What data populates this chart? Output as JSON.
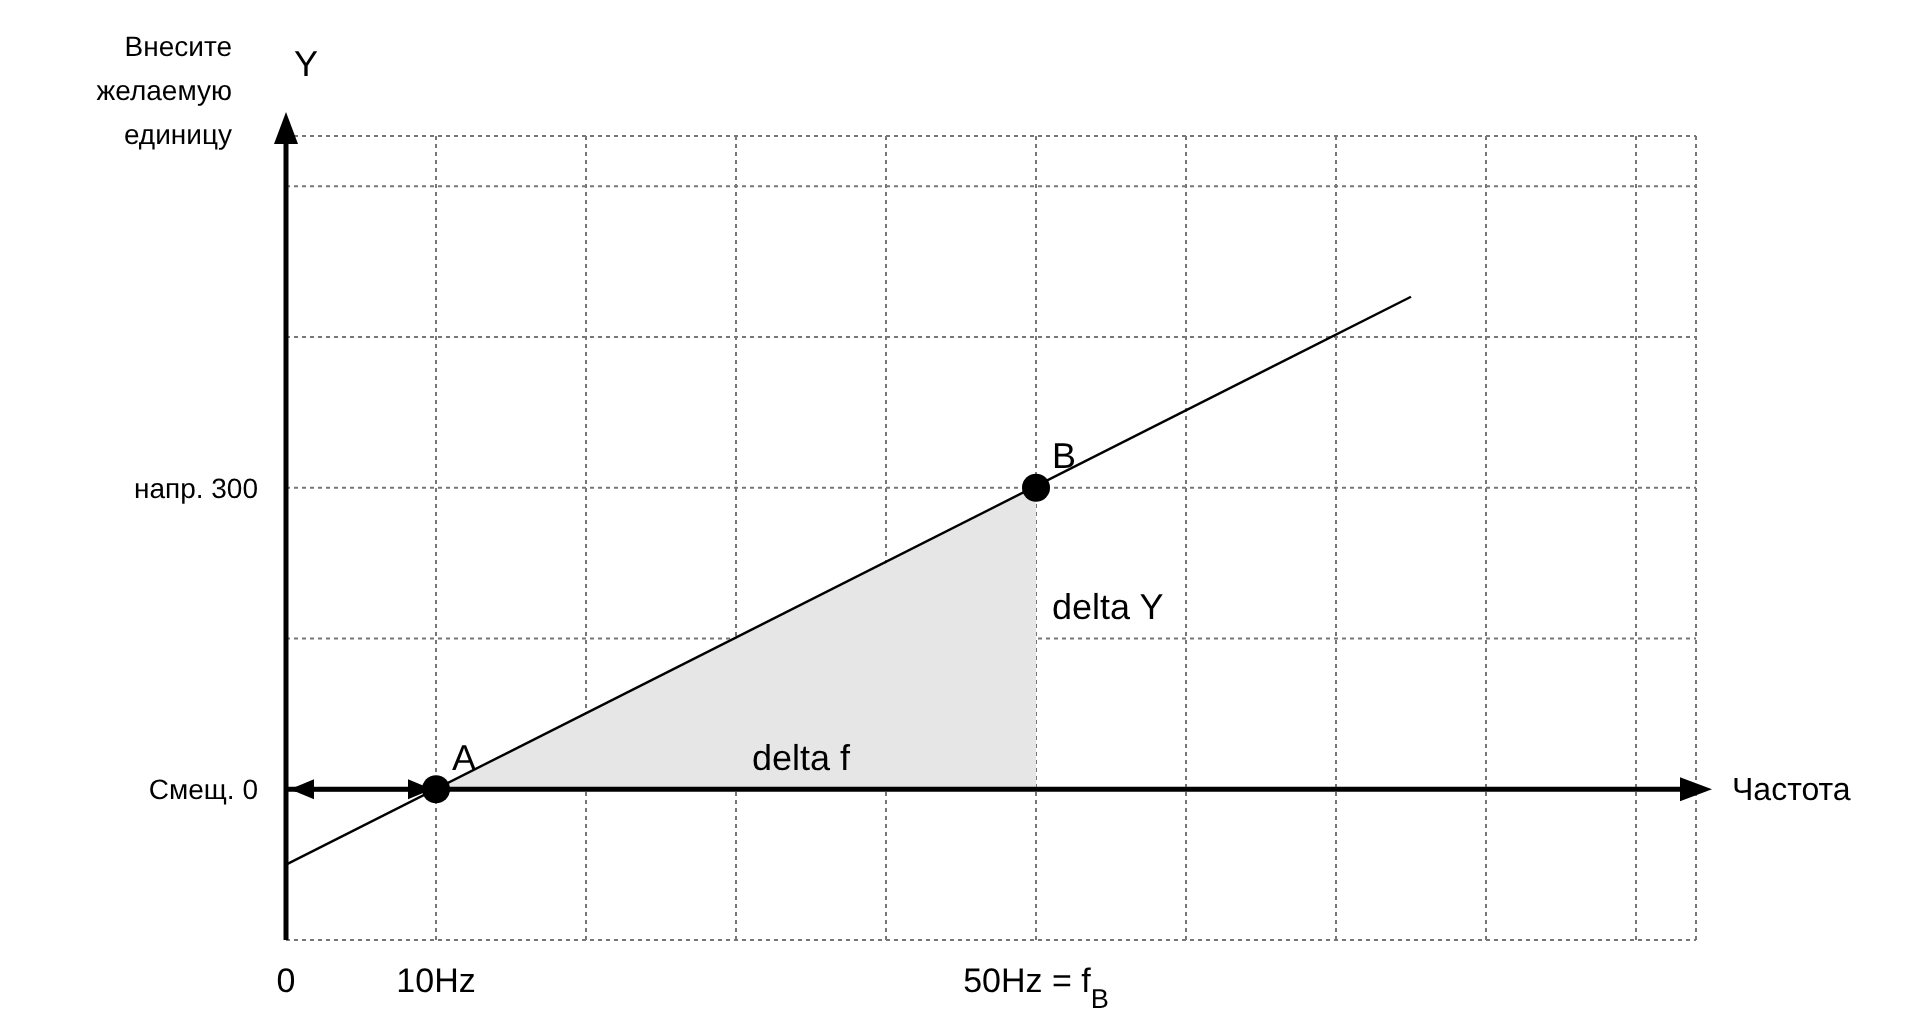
{
  "chart_data": {
    "type": "line",
    "xlabel": "Частота",
    "ylabel": "Y",
    "xlim": [
      0,
      94
    ],
    "ylim": [
      -150,
      650
    ],
    "xticks": [
      {
        "value": 0,
        "label": "0"
      },
      {
        "value": 10,
        "label": "10Hz"
      },
      {
        "value": 20,
        "label": null
      },
      {
        "value": 30,
        "label": null
      },
      {
        "value": 40,
        "label": null
      },
      {
        "value": 50,
        "label": "50Hz = f$_{B}$"
      },
      {
        "value": 60,
        "label": null
      },
      {
        "value": 70,
        "label": null
      },
      {
        "value": 80,
        "label": null
      },
      {
        "value": 90,
        "label": null
      }
    ],
    "yticks": [
      {
        "value": -150,
        "label": null
      },
      {
        "value": 0,
        "label": "Смещ. 0"
      },
      {
        "value": 150,
        "label": null
      },
      {
        "value": 300,
        "label": "напр. 300"
      },
      {
        "value": 450,
        "label": null
      },
      {
        "value": 600,
        "label": null
      }
    ],
    "grid": true,
    "line_style": "solid",
    "series": [
      {
        "type": "area",
        "color": "#e6e6e6",
        "x": [
          10,
          50
        ],
        "values": [
          0,
          300
        ]
      },
      {
        "color": "#000000",
        "x": [
          0,
          75
        ],
        "values": [
          -75,
          490
        ]
      },
      {
        "type": "scatter",
        "color": "#000000",
        "marker": "circle",
        "x": [
          10,
          50
        ],
        "values": [
          0,
          300
        ]
      }
    ],
    "annotations": [
      "Внесите желаемую единицу",
      {
        "text": "A",
        "x": 10,
        "y": 0
      },
      {
        "text": "B",
        "x": 50,
        "y": 300
      },
      {
        "text": "delta Y",
        "x": 50,
        "y": 150
      },
      {
        "text": "delta f",
        "x": 30,
        "y": 0
      }
    ]
  }
}
